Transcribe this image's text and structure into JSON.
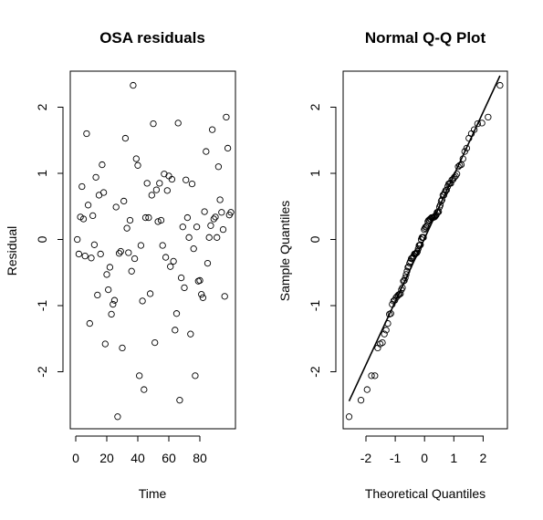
{
  "chart_data": [
    {
      "type": "scatter",
      "title": "OSA residuals",
      "xlabel": "Time",
      "ylabel": "Residual",
      "xlim": [
        0,
        100
      ],
      "ylim": [
        -2.9,
        2.5
      ],
      "xticks": [
        0,
        20,
        40,
        60,
        80
      ],
      "xtick_labels": [
        "0",
        "20",
        "40",
        "60",
        "80"
      ],
      "yticks": [
        -2,
        -1,
        0,
        1,
        2
      ],
      "ytick_labels": [
        "-2",
        "-1",
        "0",
        "1",
        "2"
      ],
      "grid": false,
      "x": [
        1,
        2,
        3,
        4,
        5,
        6,
        7,
        8,
        9,
        10,
        11,
        12,
        13,
        14,
        15,
        16,
        17,
        18,
        19,
        20,
        21,
        22,
        23,
        24,
        25,
        26,
        27,
        28,
        29,
        30,
        31,
        32,
        33,
        34,
        35,
        36,
        37,
        38,
        39,
        40,
        41,
        42,
        43,
        44,
        45,
        46,
        47,
        48,
        49,
        50,
        51,
        52,
        53,
        54,
        55,
        56,
        57,
        58,
        59,
        60,
        61,
        62,
        63,
        64,
        65,
        66,
        67,
        68,
        69,
        70,
        71,
        72,
        73,
        74,
        75,
        76,
        77,
        78,
        79,
        80,
        81,
        82,
        83,
        84,
        85,
        86,
        87,
        88,
        89,
        90,
        91,
        92,
        93,
        94,
        95,
        96,
        97,
        98,
        99,
        100
      ],
      "y": [
        0.0,
        -0.22,
        0.34,
        0.8,
        0.31,
        -0.25,
        1.6,
        0.52,
        -1.27,
        -0.28,
        0.36,
        -0.08,
        0.94,
        -0.84,
        0.67,
        -0.22,
        1.13,
        0.71,
        -1.58,
        -0.53,
        -0.76,
        -0.42,
        -1.13,
        -0.98,
        -0.92,
        0.49,
        -2.68,
        -0.21,
        -0.18,
        -1.64,
        0.58,
        1.53,
        0.17,
        -0.2,
        0.29,
        -0.48,
        2.33,
        -0.29,
        1.22,
        1.12,
        -2.06,
        -0.09,
        -0.93,
        -2.27,
        0.33,
        0.85,
        0.33,
        -0.82,
        0.67,
        1.75,
        -1.56,
        0.75,
        0.27,
        0.85,
        0.29,
        -0.09,
        0.99,
        -0.27,
        0.74,
        0.96,
        -0.41,
        0.91,
        -0.33,
        -1.37,
        -1.12,
        1.76,
        -2.43,
        -0.58,
        0.19,
        -0.73,
        0.9,
        0.33,
        0.03,
        -1.43,
        0.84,
        -0.14,
        -2.06,
        0.19,
        -0.63,
        -0.62,
        -0.83,
        -0.88,
        0.42,
        1.33,
        -0.36,
        0.03,
        0.21,
        1.66,
        0.31,
        0.34,
        0.03,
        1.1,
        0.6,
        0.41,
        0.15,
        -0.86,
        1.85,
        1.38,
        0.37,
        0.41
      ]
    },
    {
      "type": "scatter",
      "title": "Normal Q-Q Plot",
      "xlabel": "Theoretical Quantiles",
      "ylabel": "Sample Quantiles",
      "xlim": [
        -2.5758,
        2.5758
      ],
      "ylim": [
        -2.9,
        2.5
      ],
      "xticks": [
        -2,
        -1,
        0,
        1,
        2
      ],
      "xtick_labels": [
        "-2",
        "-1",
        "0",
        "1",
        "2"
      ],
      "yticks": [
        -2,
        -1,
        0,
        1,
        2
      ],
      "ytick_labels": [
        "-2",
        "-1",
        "0",
        "1",
        "2"
      ],
      "grid": false,
      "reference_line": {
        "intercept": 0.016,
        "slope": 0.955
      }
    }
  ]
}
